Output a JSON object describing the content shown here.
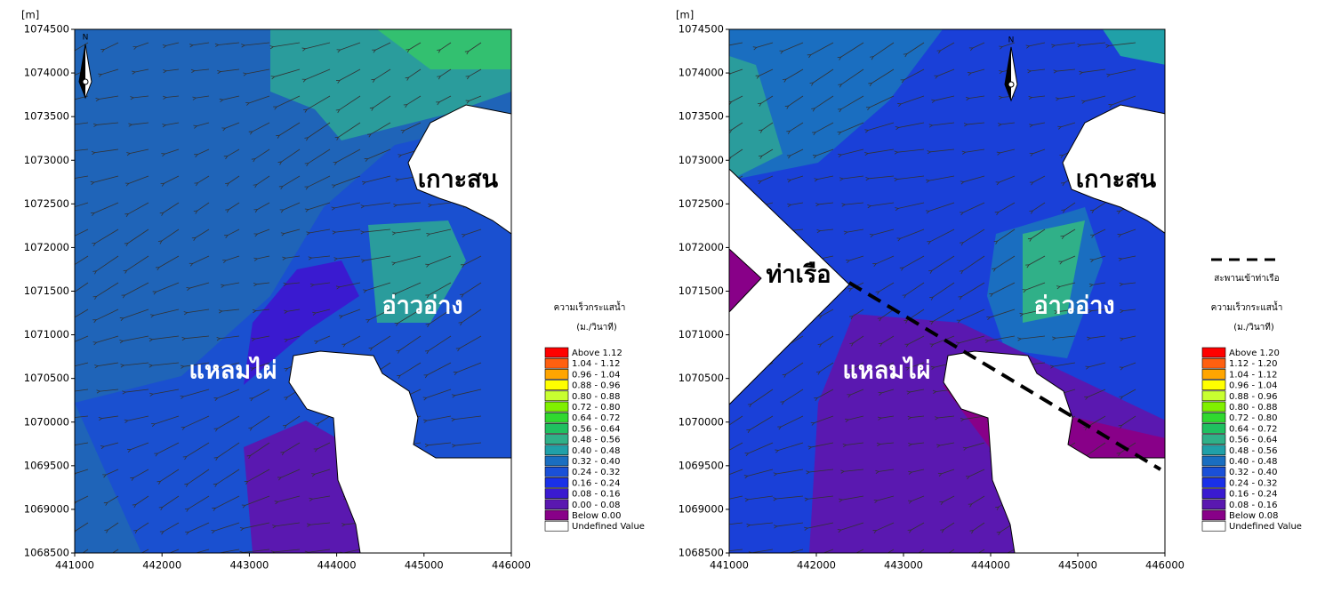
{
  "panels": [
    {
      "unit": "[m]",
      "xlim": [
        441000,
        446000
      ],
      "ylim": [
        1068500,
        1074500
      ],
      "xticks": [
        441000,
        442000,
        443000,
        444000,
        445000,
        446000
      ],
      "yticks": [
        1068500,
        1069000,
        1069500,
        1070000,
        1070500,
        1071000,
        1071500,
        1072000,
        1072500,
        1073000,
        1073500,
        1074000,
        1074500
      ],
      "labels": [
        "เกาะสน",
        "อ่าวอ่าง",
        "แหลมไผ่"
      ],
      "legend": {
        "title": "ความเร็วกระแสน้ำ",
        "unit": "(ม./วินาที)",
        "items": [
          {
            "label": "Above 1.12",
            "color": "#ff0000"
          },
          {
            "label": "1.04 - 1.12",
            "color": "#ff6010"
          },
          {
            "label": "0.96 - 1.04",
            "color": "#ffa500"
          },
          {
            "label": "0.88 - 0.96",
            "color": "#ffff00"
          },
          {
            "label": "0.80 - 0.88",
            "color": "#c8ff30"
          },
          {
            "label": "0.72 - 0.80",
            "color": "#80f000"
          },
          {
            "label": "0.64 - 0.72",
            "color": "#30d830"
          },
          {
            "label": "0.56 - 0.64",
            "color": "#20c060"
          },
          {
            "label": "0.48 - 0.56",
            "color": "#30b088"
          },
          {
            "label": "0.40 - 0.48",
            "color": "#20a0a8"
          },
          {
            "label": "0.32 - 0.40",
            "color": "#1a6ec0"
          },
          {
            "label": "0.24 - 0.32",
            "color": "#1a50d8"
          },
          {
            "label": "0.16 - 0.24",
            "color": "#1a30e8"
          },
          {
            "label": "0.08 - 0.16",
            "color": "#3a1ad0"
          },
          {
            "label": "0.00 - 0.08",
            "color": "#5a18b0"
          },
          {
            "label": "Below 0.00",
            "color": "#880088"
          },
          {
            "label": "Undefined Value",
            "color": "#ffffff"
          }
        ]
      }
    },
    {
      "unit": "[m]",
      "xlim": [
        441000,
        446000
      ],
      "ylim": [
        1068500,
        1074500
      ],
      "xticks": [
        441000,
        442000,
        443000,
        444000,
        445000,
        446000
      ],
      "yticks": [
        1068500,
        1069000,
        1069500,
        1070000,
        1070500,
        1071000,
        1071500,
        1072000,
        1072500,
        1073000,
        1073500,
        1074000,
        1074500
      ],
      "labels": [
        "เกาะสน",
        "ท่าเรือ",
        "อ่าวอ่าง",
        "แหลมไผ่"
      ],
      "bridge": "สะพานเข้าท่าเรือ",
      "legend": {
        "title": "ความเร็วกระแสน้ำ",
        "unit": "(ม./วินาที)",
        "items": [
          {
            "label": "Above 1.20",
            "color": "#ff0000"
          },
          {
            "label": "1.12 - 1.20",
            "color": "#ff6010"
          },
          {
            "label": "1.04 - 1.12",
            "color": "#ffa500"
          },
          {
            "label": "0.96 - 1.04",
            "color": "#ffff00"
          },
          {
            "label": "0.88 - 0.96",
            "color": "#c8ff30"
          },
          {
            "label": "0.80 - 0.88",
            "color": "#80f000"
          },
          {
            "label": "0.72 - 0.80",
            "color": "#30d830"
          },
          {
            "label": "0.64 - 0.72",
            "color": "#20c060"
          },
          {
            "label": "0.56 - 0.64",
            "color": "#30b088"
          },
          {
            "label": "0.48 - 0.56",
            "color": "#20a0a8"
          },
          {
            "label": "0.40 - 0.48",
            "color": "#1a6ec0"
          },
          {
            "label": "0.32 - 0.40",
            "color": "#1a50d8"
          },
          {
            "label": "0.24 - 0.32",
            "color": "#1a30e8"
          },
          {
            "label": "0.16 - 0.24",
            "color": "#3a1ad0"
          },
          {
            "label": "0.08 - 0.16",
            "color": "#5a18b0"
          },
          {
            "label": "Below 0.08",
            "color": "#880088"
          },
          {
            "label": "Undefined Value",
            "color": "#ffffff"
          }
        ]
      }
    }
  ]
}
